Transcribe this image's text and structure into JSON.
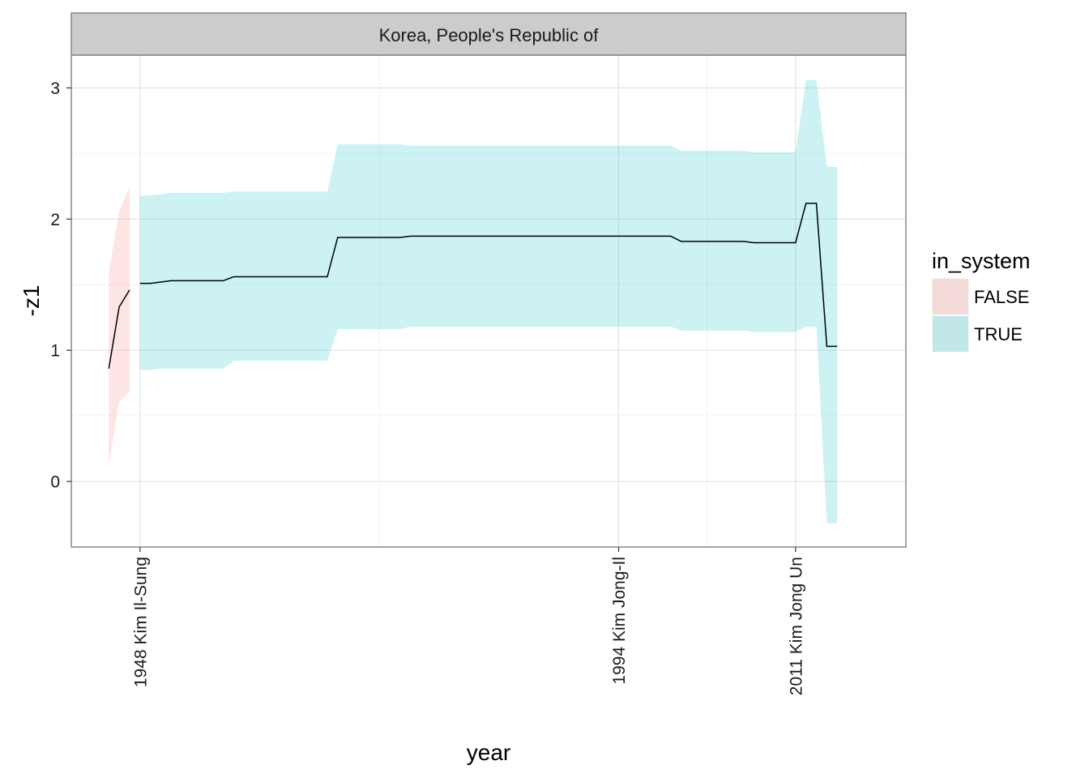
{
  "chart_data": {
    "type": "area",
    "facet_title": "Korea, People's Republic of",
    "xlabel": "year",
    "ylabel": "-z1",
    "xlim": [
      1941.4,
      2021.6
    ],
    "ylim": [
      -0.5,
      3.25
    ],
    "y_ticks": [
      0,
      1,
      2,
      3
    ],
    "x_ticks": [
      {
        "value": 1948,
        "label": "1948 Kim Il-Sung"
      },
      {
        "value": 1994,
        "label": "1994 Kim Jong-Il"
      },
      {
        "value": 2011,
        "label": "2011 Kim Jong Un"
      }
    ],
    "x_minor_breaks": [
      1971,
      2002.5
    ],
    "grid": true,
    "legend": {
      "title": "in_system",
      "position": "right",
      "entries": [
        {
          "label": "FALSE",
          "color": "#F8766D"
        },
        {
          "label": "TRUE",
          "color": "#00BFC4"
        }
      ]
    },
    "series": [
      {
        "name": "FALSE",
        "color": "#F8766D",
        "x": [
          1945,
          1946,
          1947
        ],
        "y": [
          0.86,
          1.33,
          1.46
        ],
        "lower": [
          0.12,
          0.61,
          0.68
        ],
        "upper": [
          1.59,
          2.06,
          2.24
        ]
      },
      {
        "name": "TRUE",
        "color": "#00BFC4",
        "x": [
          1948,
          1949,
          1950,
          1951,
          1952,
          1953,
          1954,
          1955,
          1956,
          1957,
          1958,
          1959,
          1960,
          1961,
          1962,
          1963,
          1964,
          1965,
          1966,
          1967,
          1968,
          1969,
          1970,
          1971,
          1972,
          1973,
          1974,
          1975,
          1976,
          1977,
          1978,
          1979,
          1980,
          1981,
          1982,
          1983,
          1984,
          1985,
          1986,
          1987,
          1988,
          1989,
          1990,
          1991,
          1992,
          1993,
          1994,
          1995,
          1996,
          1997,
          1998,
          1999,
          2000,
          2001,
          2002,
          2003,
          2004,
          2005,
          2006,
          2007,
          2008,
          2009,
          2010,
          2011,
          2012,
          2013,
          2014,
          2015
        ],
        "y": [
          1.51,
          1.51,
          1.52,
          1.53,
          1.53,
          1.53,
          1.53,
          1.53,
          1.53,
          1.56,
          1.56,
          1.56,
          1.56,
          1.56,
          1.56,
          1.56,
          1.56,
          1.56,
          1.56,
          1.86,
          1.86,
          1.86,
          1.86,
          1.86,
          1.86,
          1.86,
          1.87,
          1.87,
          1.87,
          1.87,
          1.87,
          1.87,
          1.87,
          1.87,
          1.87,
          1.87,
          1.87,
          1.87,
          1.87,
          1.87,
          1.87,
          1.87,
          1.87,
          1.87,
          1.87,
          1.87,
          1.87,
          1.87,
          1.87,
          1.87,
          1.87,
          1.87,
          1.83,
          1.83,
          1.83,
          1.83,
          1.83,
          1.83,
          1.83,
          1.82,
          1.82,
          1.82,
          1.82,
          1.82,
          2.12,
          2.12,
          1.03,
          1.03
        ],
        "lower": [
          0.85,
          0.85,
          0.86,
          0.86,
          0.86,
          0.86,
          0.86,
          0.86,
          0.86,
          0.92,
          0.92,
          0.92,
          0.92,
          0.92,
          0.92,
          0.92,
          0.92,
          0.92,
          0.92,
          1.16,
          1.16,
          1.16,
          1.16,
          1.16,
          1.16,
          1.16,
          1.18,
          1.18,
          1.18,
          1.18,
          1.18,
          1.18,
          1.18,
          1.18,
          1.18,
          1.18,
          1.18,
          1.18,
          1.18,
          1.18,
          1.18,
          1.18,
          1.18,
          1.18,
          1.18,
          1.18,
          1.18,
          1.18,
          1.18,
          1.18,
          1.18,
          1.18,
          1.15,
          1.15,
          1.15,
          1.15,
          1.15,
          1.15,
          1.15,
          1.14,
          1.14,
          1.14,
          1.14,
          1.14,
          1.18,
          1.18,
          -0.32,
          -0.32
        ],
        "upper": [
          2.18,
          2.18,
          2.19,
          2.2,
          2.2,
          2.2,
          2.2,
          2.2,
          2.2,
          2.21,
          2.21,
          2.21,
          2.21,
          2.21,
          2.21,
          2.21,
          2.21,
          2.21,
          2.21,
          2.57,
          2.57,
          2.57,
          2.57,
          2.57,
          2.57,
          2.57,
          2.56,
          2.56,
          2.56,
          2.56,
          2.56,
          2.56,
          2.56,
          2.56,
          2.56,
          2.56,
          2.56,
          2.56,
          2.56,
          2.56,
          2.56,
          2.56,
          2.56,
          2.56,
          2.56,
          2.56,
          2.56,
          2.56,
          2.56,
          2.56,
          2.56,
          2.56,
          2.52,
          2.52,
          2.52,
          2.52,
          2.52,
          2.52,
          2.52,
          2.51,
          2.51,
          2.51,
          2.51,
          2.51,
          3.06,
          3.06,
          2.4,
          2.4
        ]
      }
    ]
  }
}
